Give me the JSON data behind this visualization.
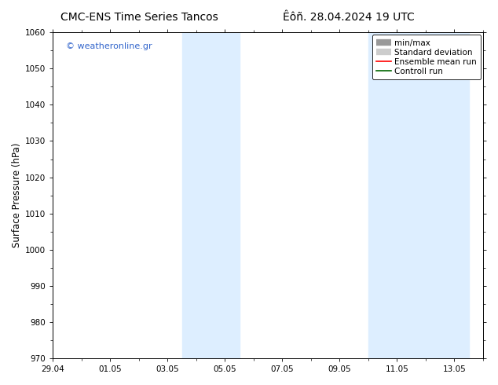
{
  "title_left": "CMC-ENS Time Series Tancos",
  "title_right": "Êôñ. 28.04.2024 19 UTC",
  "ylabel": "Surface Pressure (hPa)",
  "ylim": [
    970,
    1060
  ],
  "yticks": [
    970,
    980,
    990,
    1000,
    1010,
    1020,
    1030,
    1040,
    1050,
    1060
  ],
  "xlim": [
    0,
    15
  ],
  "xtick_labels": [
    "29.04",
    "01.05",
    "03.05",
    "05.05",
    "07.05",
    "09.05",
    "11.05",
    "13.05"
  ],
  "xtick_positions": [
    0,
    2,
    4,
    6,
    8,
    10,
    12,
    14
  ],
  "shaded_bands": [
    {
      "start": 4.5,
      "end": 6.5
    },
    {
      "start": 11.0,
      "end": 14.5
    }
  ],
  "shaded_color": "#ddeeff",
  "watermark_text": "© weatheronline.gr",
  "watermark_color": "#3366cc",
  "background_color": "#ffffff",
  "legend_entries": [
    {
      "label": "min/max",
      "color": "#999999",
      "style": "hbar"
    },
    {
      "label": "Standard deviation",
      "color": "#cccccc",
      "style": "hbar"
    },
    {
      "label": "Ensemble mean run",
      "color": "#ff0000",
      "style": "line"
    },
    {
      "label": "Controll run",
      "color": "#006600",
      "style": "line"
    }
  ],
  "title_fontsize": 10,
  "tick_fontsize": 7.5,
  "label_fontsize": 8.5,
  "legend_fontsize": 7.5,
  "watermark_fontsize": 8
}
